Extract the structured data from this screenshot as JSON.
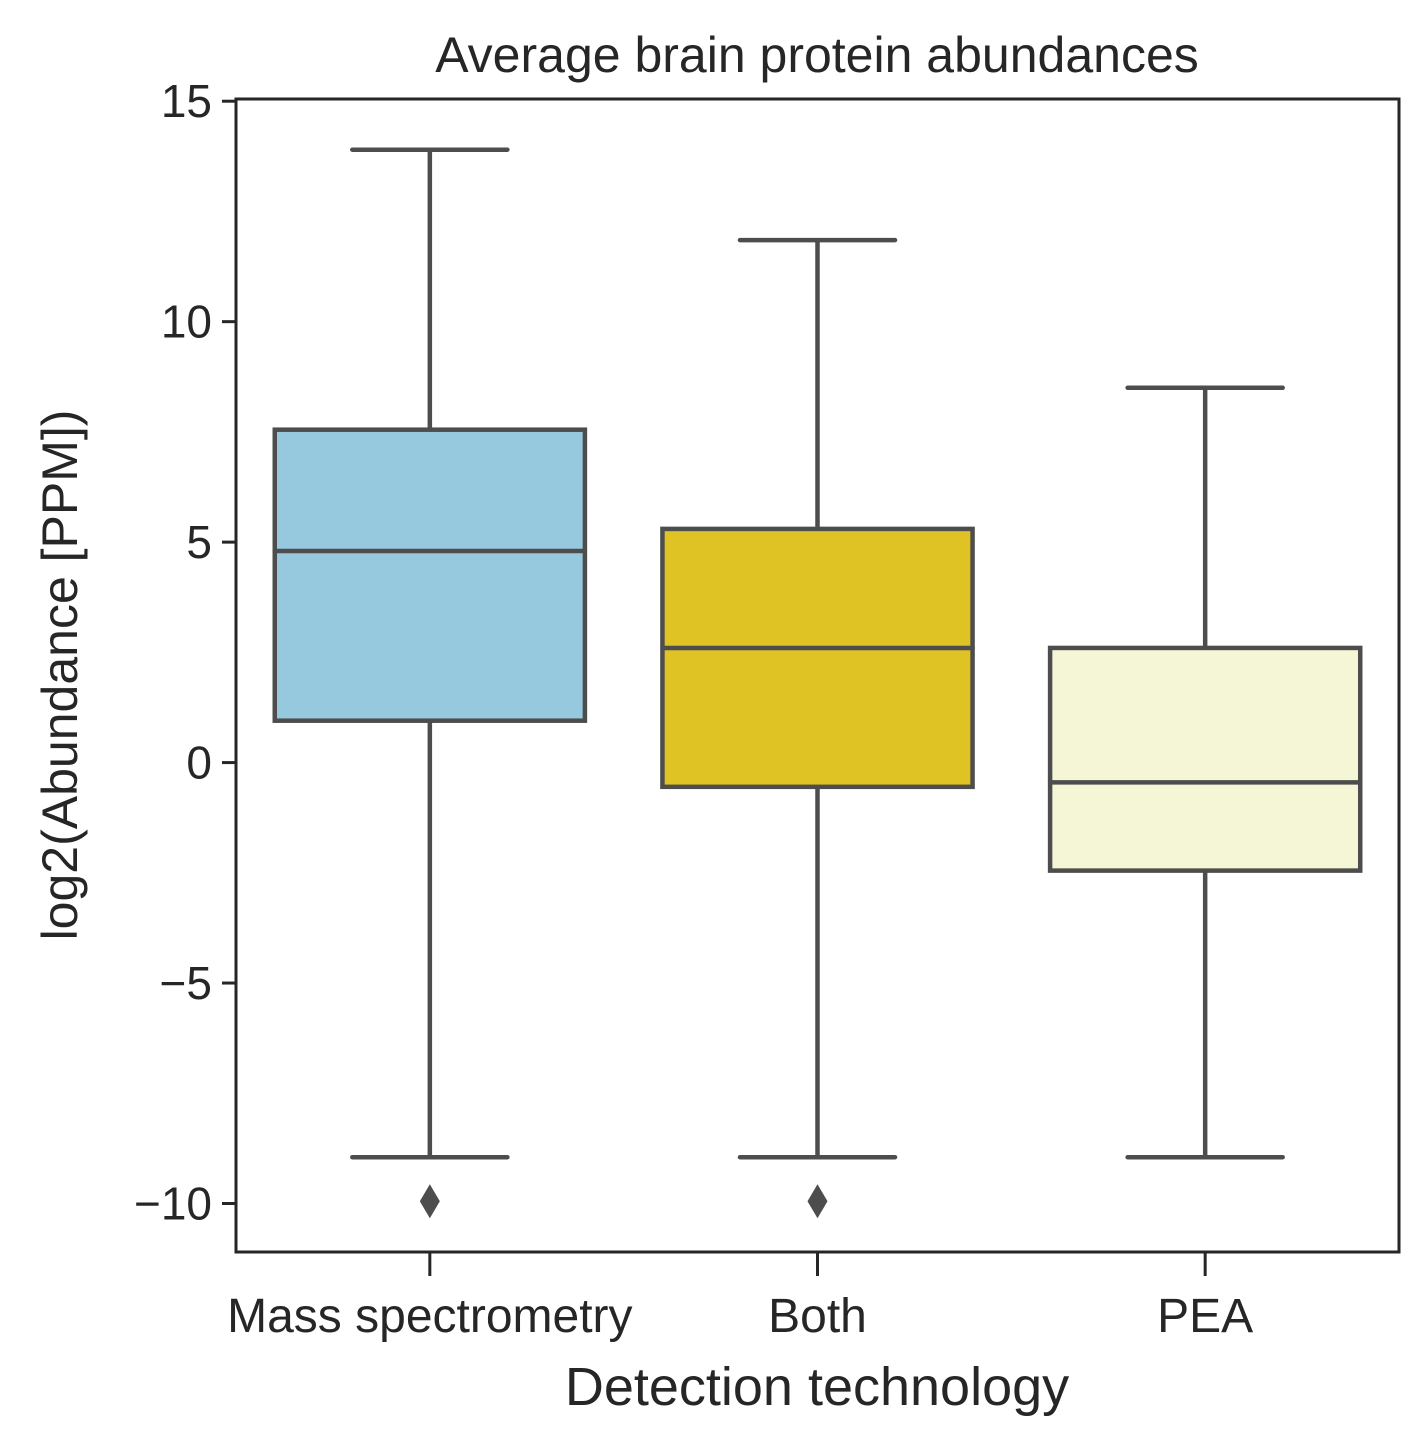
{
  "chart_data": {
    "type": "box",
    "title": "Average brain protein abundances",
    "xlabel": "Detection technology",
    "ylabel": "log2(Abundance [PPM])",
    "ylim": [
      -11.1,
      15.05
    ],
    "yticks": [
      15,
      10,
      5,
      0,
      -5,
      -10
    ],
    "ytick_labels": [
      "15",
      "10",
      "5",
      "0",
      "−5",
      "−10"
    ],
    "categories": [
      "Mass spectrometry",
      "Both",
      "PEA"
    ],
    "boxes": [
      {
        "category": "Mass spectrometry",
        "color": "#96c9de",
        "whisker_low": -8.95,
        "q1": 0.95,
        "median": 4.8,
        "q3": 7.55,
        "whisker_high": 13.9,
        "outliers": [
          -9.95
        ]
      },
      {
        "category": "Both",
        "color": "#dfc223",
        "whisker_low": -8.95,
        "q1": -0.55,
        "median": 2.6,
        "q3": 5.3,
        "whisker_high": 11.85,
        "outliers": [
          -9.95
        ]
      },
      {
        "category": "PEA",
        "color": "#f4f6d6",
        "whisker_low": -8.95,
        "q1": -2.45,
        "median": -0.45,
        "q3": 2.6,
        "whisker_high": 8.5,
        "outliers": []
      }
    ],
    "grid": false,
    "legend": "none"
  }
}
